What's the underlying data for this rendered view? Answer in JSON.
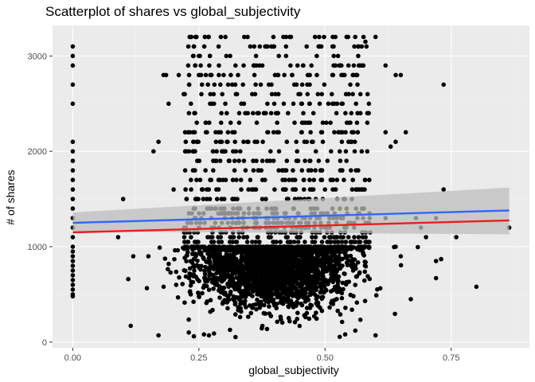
{
  "chart_data": {
    "type": "scatter",
    "title": "Scatterplot of shares vs global_subjectivity",
    "xlabel": "global_subjectivity",
    "ylabel": "# of shares",
    "xlim": [
      -0.04,
      0.905
    ],
    "ylim": [
      -60,
      3320
    ],
    "x_ticks": [
      0.0,
      0.25,
      0.5,
      0.75
    ],
    "x_tick_labels": [
      "0.00",
      "0.25",
      "0.50",
      "0.75"
    ],
    "y_ticks": [
      0,
      1000,
      2000,
      3000
    ],
    "y_tick_labels": [
      "0",
      "1000",
      "2000",
      "3000"
    ],
    "x_minor_ticks": [
      0.125,
      0.375,
      0.625,
      0.875
    ],
    "y_minor_ticks": [
      500,
      1500,
      2500
    ],
    "grid": true,
    "background_color": "#ebebeb",
    "point_color": "#000000",
    "series": [
      {
        "type": "scatter",
        "points": [
          [
            0,
            3100
          ],
          [
            0,
            3000
          ],
          [
            0,
            2900
          ],
          [
            0,
            2700
          ],
          [
            0,
            2500
          ],
          [
            0,
            2100
          ],
          [
            0,
            2000
          ],
          [
            0,
            1900
          ],
          [
            0,
            1800
          ],
          [
            0,
            1700
          ],
          [
            0,
            1600
          ],
          [
            0,
            1500
          ],
          [
            0,
            1400
          ],
          [
            0,
            1300
          ],
          [
            0,
            1200
          ],
          [
            0,
            1100
          ],
          [
            0,
            1000
          ],
          [
            0,
            950
          ],
          [
            0,
            900
          ],
          [
            0,
            850
          ],
          [
            0,
            800
          ],
          [
            0,
            750
          ],
          [
            0,
            700
          ],
          [
            0,
            650
          ],
          [
            0,
            600
          ],
          [
            0,
            550
          ],
          [
            0,
            500
          ],
          [
            0,
            480
          ],
          [
            0.09,
            1100
          ],
          [
            0.1,
            1500
          ],
          [
            0.11,
            660
          ],
          [
            0.12,
            900
          ],
          [
            0.115,
            170
          ],
          [
            0.15,
            900
          ],
          [
            0.16,
            2000
          ],
          [
            0.17,
            2100
          ],
          [
            0.17,
            70
          ],
          [
            0.18,
            2800
          ],
          [
            0.185,
            2800
          ],
          [
            0.19,
            2500
          ],
          [
            0.2,
            1600
          ],
          [
            0.21,
            2800
          ],
          [
            0.205,
            600
          ],
          [
            0.22,
            2600
          ],
          [
            0.235,
            3200
          ],
          [
            0.24,
            3100
          ],
          [
            0.25,
            2800
          ],
          [
            0.255,
            2600
          ],
          [
            0.23,
            100
          ],
          [
            0.24,
            60
          ],
          [
            0.26,
            80
          ],
          [
            0.27,
            70
          ],
          [
            0.28,
            90
          ],
          [
            0.62,
            2200
          ],
          [
            0.64,
            2100
          ],
          [
            0.65,
            2800
          ],
          [
            0.66,
            2200
          ],
          [
            0.63,
            2050
          ],
          [
            0.6,
            3200
          ],
          [
            0.62,
            2900
          ],
          [
            0.64,
            2800
          ],
          [
            0.58,
            3150
          ],
          [
            0.6,
            70
          ],
          [
            0.56,
            120
          ],
          [
            0.54,
            80
          ],
          [
            0.62,
            1300
          ],
          [
            0.64,
            1000
          ],
          [
            0.65,
            900
          ],
          [
            0.67,
            450
          ],
          [
            0.68,
            1300
          ],
          [
            0.69,
            1200
          ],
          [
            0.7,
            1100
          ],
          [
            0.72,
            850
          ],
          [
            0.73,
            870
          ],
          [
            0.735,
            2700
          ],
          [
            0.735,
            1600
          ],
          [
            0.72,
            670
          ],
          [
            0.72,
            1300
          ],
          [
            0.76,
            1100
          ],
          [
            0.8,
            580
          ],
          [
            0.865,
            1200
          ],
          [
            0.55,
            2700
          ],
          [
            0.57,
            2400
          ]
        ]
      },
      {
        "type": "cluster",
        "x_center": 0.4,
        "x_spread": 0.075,
        "y_center": 820,
        "y_spread": 230,
        "count": 2600
      },
      {
        "type": "bands",
        "x_range": [
          0.22,
          0.59
        ],
        "y_values": [
          1000,
          1050,
          1100,
          1150,
          1200,
          1250,
          1300,
          1350,
          1400,
          1500,
          1600,
          1700,
          1800,
          1900,
          2000,
          2100,
          2200,
          2300,
          2400,
          2500,
          2600,
          2700,
          2800,
          2900,
          3000,
          3100,
          3200
        ],
        "count": 900
      },
      {
        "type": "line",
        "name": "",
        "color": "#3366ff",
        "x": [
          0.0,
          0.865
        ],
        "y": [
          1250,
          1380
        ],
        "ribbon_low": [
          1160,
          1130
        ],
        "ribbon_high": [
          1360,
          1620
        ],
        "ribbon_color": "#bdbdbd"
      },
      {
        "type": "line",
        "name": "",
        "color": "#ee1c1c",
        "x": [
          0.0,
          0.865
        ],
        "y": [
          1150,
          1275
        ]
      }
    ]
  }
}
